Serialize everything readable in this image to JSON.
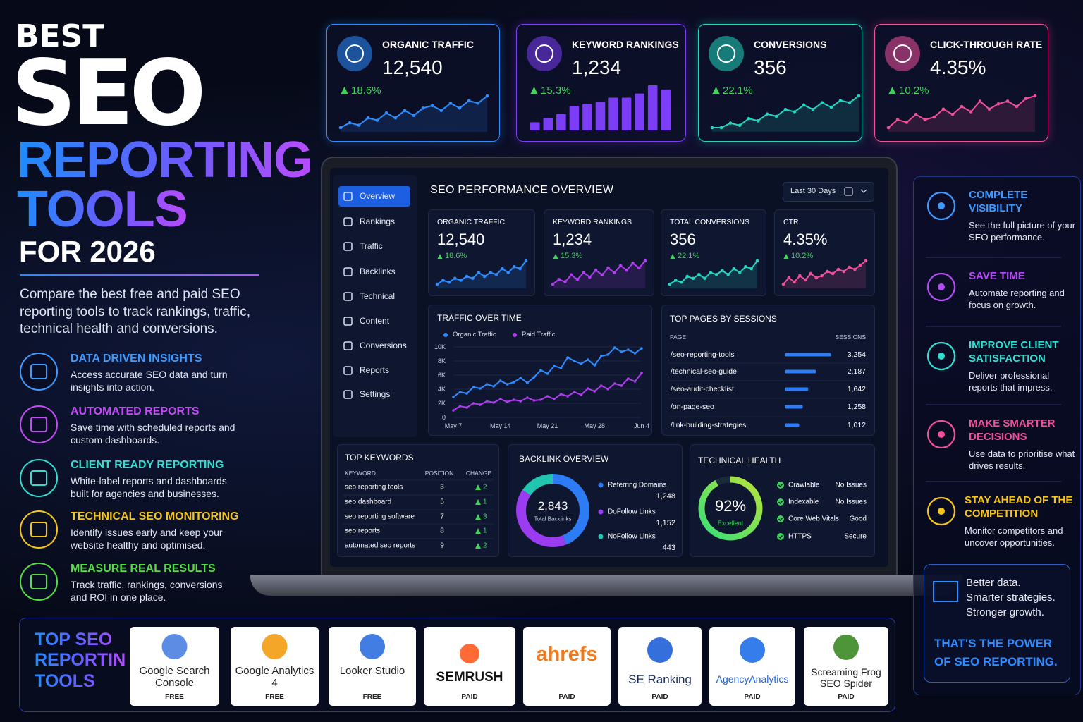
{
  "hero": {
    "kicker": "BEST",
    "title": "SEO",
    "title_line2": "REPORTING",
    "title_line3": "TOOLS",
    "year": "FOR 2026",
    "intro": "Compare the best free and paid SEO reporting tools to track rankings, traffic, technical health and conversions."
  },
  "features": [
    {
      "title": "DATA DRIVEN INSIGHTS",
      "text": "Access accurate SEO data and turn insights into action.",
      "color": "#3d9bff"
    },
    {
      "title": "AUTOMATED REPORTS",
      "text": "Save time with scheduled reports and custom dashboards.",
      "color": "#c24df2"
    },
    {
      "title": "CLIENT READY REPORTING",
      "text": "White-label reports and dashboards built for agencies and businesses.",
      "color": "#2fe0d0"
    },
    {
      "title": "TECHNICAL SEO MONITORING",
      "text": "Identify issues early and keep your website healthy and optimised.",
      "color": "#f5c518"
    },
    {
      "title": "MEASURE REAL RESULTS",
      "text": "Track traffic, rankings, conversions and ROI in one place.",
      "color": "#56dd45"
    }
  ],
  "kpi_cards": [
    {
      "label": "ORGANIC TRAFFIC",
      "value": "12,540",
      "change": "18.6%",
      "color": "#2d8cff",
      "type": "line",
      "values": [
        2,
        3,
        2.5,
        4,
        3.5,
        5,
        4,
        5.5,
        4.5,
        6,
        6.5,
        5.5,
        7,
        6,
        7.5,
        7,
        8.5
      ]
    },
    {
      "label": "KEYWORD RANKINGS",
      "value": "1,234",
      "change": "15.3%",
      "color": "#7b3df5",
      "type": "bar",
      "values": [
        2,
        3,
        4,
        6,
        6.5,
        7,
        8,
        8,
        9,
        11,
        10
      ]
    },
    {
      "label": "CONVERSIONS",
      "value": "356",
      "change": "22.1%",
      "color": "#22d6c0",
      "type": "line",
      "values": [
        2,
        2,
        3,
        2.5,
        4,
        3.5,
        5,
        4.5,
        6,
        5.5,
        7,
        6,
        7.5,
        6.5,
        8,
        7.5,
        9
      ]
    },
    {
      "label": "CLICK-THROUGH RATE",
      "value": "4.35%",
      "change": "10.2%",
      "color": "#f0509a",
      "type": "line",
      "values": [
        2,
        3.5,
        3,
        4.5,
        3.5,
        4,
        5.5,
        4.5,
        6,
        5,
        7,
        5.5,
        6.5,
        7,
        6,
        7.5,
        8
      ]
    }
  ],
  "dashboard": {
    "nav": [
      "Overview",
      "Rankings",
      "Traffic",
      "Backlinks",
      "Technical",
      "Content",
      "Conversions",
      "Reports",
      "Settings"
    ],
    "title": "SEO PERFORMANCE OVERVIEW",
    "date_range": "Last 30 Days",
    "kpis": [
      {
        "label": "ORGANIC TRAFFIC",
        "value": "12,540",
        "change": "18.6%",
        "color": "#2d8cff",
        "values": [
          2,
          3,
          2.5,
          3.5,
          3,
          4,
          3.5,
          5,
          4,
          5,
          4.5,
          6,
          5,
          6.5,
          6,
          8
        ]
      },
      {
        "label": "KEYWORD RANKINGS",
        "value": "1,234",
        "change": "15.3%",
        "color": "#b13cf0",
        "values": [
          2,
          3,
          2.5,
          4,
          3,
          4.5,
          3.5,
          5,
          4,
          5.5,
          4.5,
          6,
          5,
          6.5,
          5.5,
          7
        ]
      },
      {
        "label": "TOTAL CONVERSIONS",
        "value": "356",
        "change": "22.1%",
        "color": "#22d6c0",
        "values": [
          2,
          3,
          2.5,
          4,
          3.5,
          4.5,
          3.5,
          5,
          4.5,
          5.5,
          4.5,
          6,
          5,
          6.5,
          6,
          8
        ]
      },
      {
        "label": "CTR",
        "value": "4.35%",
        "change": "10.2%",
        "color": "#f0509a",
        "values": [
          2,
          3.5,
          2.5,
          4,
          3,
          4.5,
          3.5,
          4,
          5,
          4.5,
          5.5,
          5,
          6,
          5.5,
          6.5,
          7.5
        ]
      }
    ],
    "traffic_chart": {
      "type": "line",
      "title": "TRAFFIC OVER TIME",
      "x": [
        "May 7",
        null,
        null,
        null,
        null,
        null,
        null,
        "May 14",
        null,
        null,
        null,
        null,
        null,
        null,
        "May 21",
        null,
        null,
        null,
        null,
        null,
        null,
        "May 28",
        null,
        null,
        null,
        null,
        null,
        null,
        "Jun 4"
      ],
      "series": [
        {
          "name": "Organic Traffic",
          "color": "#2d8cff",
          "values": [
            2900,
            3600,
            3400,
            4300,
            4100,
            4700,
            4400,
            5200,
            4700,
            5000,
            5600,
            4900,
            5700,
            6700,
            6200,
            7300,
            7000,
            8500,
            8000,
            7600,
            8200,
            7400,
            8700,
            8900,
            9900,
            9300,
            9600,
            9100,
            9800
          ]
        },
        {
          "name": "Paid Traffic",
          "color": "#b13cf0",
          "values": [
            1000,
            1600,
            1400,
            2000,
            1800,
            2300,
            2100,
            2600,
            2200,
            2500,
            2300,
            2800,
            2400,
            2500,
            3000,
            2600,
            3300,
            3000,
            3600,
            3200,
            4100,
            3700,
            4500,
            4000,
            4800,
            4500,
            5500,
            5100,
            6300
          ]
        }
      ],
      "ylim": [
        0,
        10000
      ],
      "yticks": [
        0,
        {
          "value": 2000,
          "label": "2K"
        },
        {
          "value": 4000,
          "label": "4K"
        },
        {
          "value": 6000,
          "label": "6K"
        },
        {
          "value": 8000,
          "label": "8K"
        },
        {
          "value": 10000,
          "label": "10K"
        }
      ]
    },
    "top_pages": {
      "title": "TOP PAGES BY SESSIONS",
      "columns": [
        "PAGE",
        "SESSIONS"
      ],
      "pages": [
        "/seo-reporting-tools",
        "/technical-seo-guide",
        "/seo-audit-checklist",
        "/on-page-seo",
        "/link-building-strategies"
      ],
      "values": [
        3254,
        2187,
        1642,
        1258,
        1012
      ],
      "value_labels": [
        "3,254",
        "2,187",
        "1,642",
        "1,258",
        "1,012"
      ],
      "color": "#2d7cf5"
    },
    "top_keywords": {
      "title": "TOP KEYWORDS",
      "columns": [
        "KEYWORD",
        "POSITION",
        "CHANGE"
      ],
      "rows": [
        [
          "seo reporting tools",
          3,
          2
        ],
        [
          "seo dashboard",
          5,
          1
        ],
        [
          "seo reporting software",
          7,
          3
        ],
        [
          "seo reports",
          8,
          1
        ],
        [
          "automated seo reports",
          9,
          2
        ]
      ]
    },
    "backlinks": {
      "title": "BACKLINK OVERVIEW",
      "total": "2,843",
      "total_caption": "Total Backlinks",
      "series": [
        {
          "name": "Referring Domains",
          "value": 1248,
          "value_label": "1,248",
          "color": "#2d7cf5"
        },
        {
          "name": "DoFollow Links",
          "value": 1152,
          "value_label": "1,152",
          "color": "#9b3cf0"
        },
        {
          "name": "NoFollow Links",
          "value": 443,
          "value_label": "443",
          "color": "#22c6b0"
        }
      ]
    },
    "technical_health": {
      "title": "TECHNICAL HEALTH",
      "score": 92,
      "score_label": "92%",
      "lim": [
        0,
        100
      ],
      "status": "Excellent",
      "checks": [
        {
          "name": "Crawlable",
          "status": "No Issues"
        },
        {
          "name": "Indexable",
          "status": "No Issues"
        },
        {
          "name": "Core Web Vitals",
          "status": "Good"
        },
        {
          "name": "HTTPS",
          "status": "Secure"
        }
      ]
    }
  },
  "benefits": [
    {
      "title": "COMPLETE VISIBILITY",
      "text": "See the full picture of your SEO performance.",
      "color": "#3d9bff"
    },
    {
      "title": "SAVE TIME",
      "text": "Automate reporting and focus on growth.",
      "color": "#b24df2"
    },
    {
      "title": "IMPROVE CLIENT SATISFACTION",
      "text": "Deliver professional reports that impress.",
      "color": "#2fe0d0"
    },
    {
      "title": "MAKE SMARTER DECISIONS",
      "text": "Use data to prioritise what drives results.",
      "color": "#f0509a"
    },
    {
      "title": "STAY AHEAD OF THE COMPETITION",
      "text": "Monitor competitors and uncover opportunities.",
      "color": "#f5c518"
    }
  ],
  "tagline": {
    "lines": [
      "Better data.",
      "Smarter strategies.",
      "Stronger growth."
    ],
    "closing": "THAT'S THE POWER OF SEO REPORTING."
  },
  "tools": {
    "title": "TOP SEO REPORTING TOOLS",
    "items": [
      {
        "name": "Google Search Console",
        "price": "FREE"
      },
      {
        "name": "Google Analytics 4",
        "price": "FREE"
      },
      {
        "name": "Looker Studio",
        "price": "FREE"
      },
      {
        "name": "SEMRUSH",
        "price": "PAID"
      },
      {
        "name": "ahrefs",
        "price": "PAID"
      },
      {
        "name": "SE Ranking",
        "price": "PAID"
      },
      {
        "name": "AgencyAnalytics",
        "price": "PAID"
      },
      {
        "name": "Screaming Frog SEO Spider",
        "price": "PAID"
      }
    ]
  }
}
